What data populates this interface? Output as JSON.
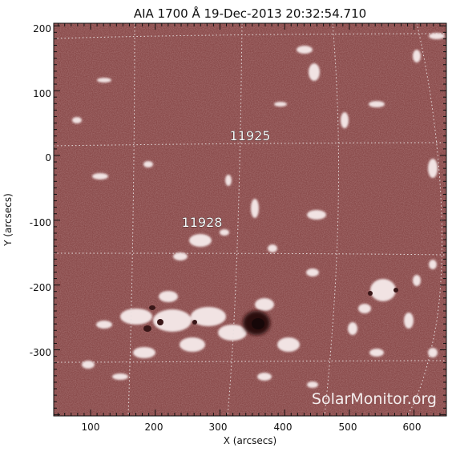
{
  "title": "AIA 1700 Å 19-Dec-2013 20:32:54.710",
  "x_axis": {
    "label": "X (arcsecs)",
    "ticks": [
      "100",
      "200",
      "300",
      "400",
      "500",
      "600"
    ]
  },
  "y_axis": {
    "label": "Y (arcsecs)",
    "ticks": [
      "200",
      "100",
      "0",
      "-100",
      "-200",
      "-300"
    ]
  },
  "regions": [
    {
      "number": "11925"
    },
    {
      "number": "11928"
    }
  ],
  "watermark": "SolarMonitor.org",
  "colors": {
    "background": "#8a4b4b",
    "bright": "#f3e6e6",
    "spot": "#2a0f10",
    "grid": "#e6dede"
  }
}
